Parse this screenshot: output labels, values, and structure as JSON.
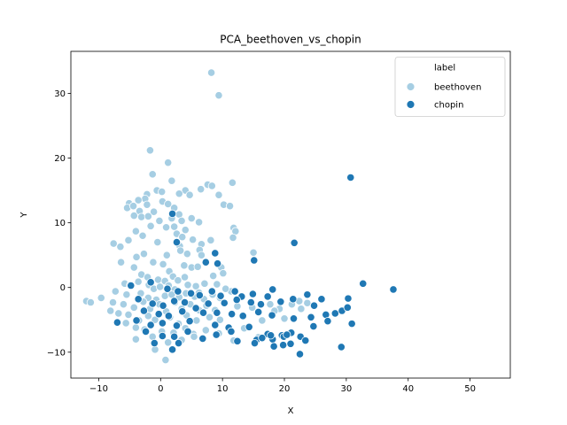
{
  "chart_data": {
    "type": "scatter",
    "title": "PCA_beethoven_vs_chopin",
    "xlabel": "X",
    "ylabel": "Y",
    "xlim": [
      -14.5,
      56.5
    ],
    "ylim": [
      -14.0,
      36.5
    ],
    "xticks": [
      -10,
      0,
      10,
      20,
      30,
      40,
      50
    ],
    "yticks": [
      -10,
      0,
      10,
      20,
      30
    ],
    "legend": {
      "title": "label",
      "position": "top-right"
    },
    "colors": {
      "beethoven": "#a6cee3",
      "chopin": "#1f78b4",
      "marker_edge": "#ffffff"
    },
    "series": [
      {
        "name": "beethoven",
        "points": [
          [
            8.2,
            33.2
          ],
          [
            9.4,
            29.7
          ],
          [
            -1.7,
            21.2
          ],
          [
            1.2,
            19.3
          ],
          [
            -1.3,
            17.5
          ],
          [
            1.8,
            16.5
          ],
          [
            4.0,
            15.0
          ],
          [
            6.5,
            15.2
          ],
          [
            7.6,
            15.9
          ],
          [
            8.3,
            15.7
          ],
          [
            11.6,
            16.2
          ],
          [
            -0.6,
            15.0
          ],
          [
            0.2,
            14.8
          ],
          [
            -2.2,
            14.4
          ],
          [
            3.0,
            14.5
          ],
          [
            4.7,
            14.3
          ],
          [
            9.4,
            14.3
          ],
          [
            -2.5,
            13.7
          ],
          [
            -3.6,
            13.5
          ],
          [
            -5.1,
            13.0
          ],
          [
            -5.4,
            12.3
          ],
          [
            -4.4,
            12.6
          ],
          [
            -3.4,
            11.8
          ],
          [
            -2.2,
            12.8
          ],
          [
            -1.1,
            11.7
          ],
          [
            0.3,
            13.3
          ],
          [
            1.2,
            12.9
          ],
          [
            2.2,
            12.3
          ],
          [
            10.2,
            12.8
          ],
          [
            11.2,
            12.6
          ],
          [
            -4.3,
            11.1
          ],
          [
            -3.1,
            10.9
          ],
          [
            -2.0,
            11.0
          ],
          [
            -0.2,
            10.3
          ],
          [
            1.8,
            10.7
          ],
          [
            3.0,
            11.3
          ],
          [
            3.4,
            10.3
          ],
          [
            5.0,
            10.7
          ],
          [
            6.2,
            10.1
          ],
          [
            11.8,
            9.2
          ],
          [
            12.1,
            8.7
          ],
          [
            -1.6,
            9.5
          ],
          [
            0.9,
            9.3
          ],
          [
            2.2,
            9.4
          ],
          [
            2.6,
            8.3
          ],
          [
            4.0,
            8.9
          ],
          [
            -4.0,
            8.7
          ],
          [
            -2.9,
            8.0
          ],
          [
            3.5,
            7.8
          ],
          [
            5.2,
            7.4
          ],
          [
            8.1,
            7.3
          ],
          [
            11.7,
            7.7
          ],
          [
            -7.6,
            6.8
          ],
          [
            -6.5,
            6.3
          ],
          [
            -5.2,
            7.3
          ],
          [
            -0.5,
            7.0
          ],
          [
            6.6,
            6.7
          ],
          [
            3.1,
            6.4
          ],
          [
            6.3,
            5.8
          ],
          [
            -2.7,
            5.2
          ],
          [
            -3.9,
            4.7
          ],
          [
            1.0,
            5.0
          ],
          [
            3.2,
            5.7
          ],
          [
            4.3,
            5.2
          ],
          [
            6.6,
            5.0
          ],
          [
            15.0,
            5.4
          ],
          [
            -6.4,
            3.9
          ],
          [
            -1.2,
            3.9
          ],
          [
            0.4,
            3.6
          ],
          [
            1.4,
            2.5
          ],
          [
            3.8,
            3.4
          ],
          [
            5.0,
            3.1
          ],
          [
            6.0,
            3.2
          ],
          [
            9.8,
            3.1
          ],
          [
            -4.3,
            3.1
          ],
          [
            -3.1,
            2.0
          ],
          [
            -2.1,
            1.6
          ],
          [
            -0.4,
            1.2
          ],
          [
            0.7,
            1.0
          ],
          [
            2.0,
            1.7
          ],
          [
            2.8,
            1.1
          ],
          [
            3.9,
            1.6
          ],
          [
            8.5,
            1.8
          ],
          [
            10.1,
            2.2
          ],
          [
            -5.8,
            0.6
          ],
          [
            -4.9,
            0.4
          ],
          [
            -3.6,
            0.9
          ],
          [
            -1.9,
            0.4
          ],
          [
            -1.1,
            -0.2
          ],
          [
            -0.1,
            0.1
          ],
          [
            1.3,
            0.3
          ],
          [
            2.3,
            -0.3
          ],
          [
            4.4,
            0.4
          ],
          [
            5.7,
            0.2
          ],
          [
            7.1,
            0.6
          ],
          [
            9.1,
            0.5
          ],
          [
            11.4,
            -0.6
          ],
          [
            -7.3,
            -0.6
          ],
          [
            -5.5,
            -1.1
          ],
          [
            -3.2,
            -0.9
          ],
          [
            -2.0,
            -1.6
          ],
          [
            -0.7,
            -1.9
          ],
          [
            0.7,
            -1.3
          ],
          [
            1.8,
            -1.1
          ],
          [
            3.0,
            -1.5
          ],
          [
            4.1,
            -0.9
          ],
          [
            5.5,
            -1.4
          ],
          [
            6.2,
            -0.8
          ],
          [
            7.0,
            -1.8
          ],
          [
            8.4,
            -1.1
          ],
          [
            9.6,
            -1.6
          ],
          [
            10.5,
            -0.2
          ],
          [
            -12.0,
            -2.1
          ],
          [
            -11.3,
            -2.3
          ],
          [
            -9.6,
            -1.6
          ],
          [
            -7.7,
            -2.3
          ],
          [
            -6.0,
            -2.6
          ],
          [
            -4.3,
            -3.1
          ],
          [
            -2.8,
            -2.2
          ],
          [
            -1.7,
            -3.3
          ],
          [
            -0.2,
            -2.6
          ],
          [
            0.9,
            -3.7
          ],
          [
            2.3,
            -2.3
          ],
          [
            3.4,
            -3.3
          ],
          [
            4.8,
            -2.6
          ],
          [
            6.2,
            -3.5
          ],
          [
            7.4,
            -2.8
          ],
          [
            8.8,
            -3.5
          ],
          [
            -8.1,
            -3.6
          ],
          [
            -6.8,
            -4.0
          ],
          [
            -5.2,
            -4.2
          ],
          [
            -3.5,
            -5.1
          ],
          [
            -2.0,
            -4.4
          ],
          [
            -0.9,
            -5.0
          ],
          [
            1.5,
            -4.6
          ],
          [
            2.9,
            -5.6
          ],
          [
            4.2,
            -4.3
          ],
          [
            5.8,
            -5.1
          ],
          [
            7.9,
            -4.6
          ],
          [
            9.6,
            -5.0
          ],
          [
            -5.6,
            -5.5
          ],
          [
            -4.0,
            -6.2
          ],
          [
            -2.6,
            -6.5
          ],
          [
            0.2,
            -6.8
          ],
          [
            2.1,
            -7.0
          ],
          [
            4.0,
            -6.3
          ],
          [
            5.3,
            -7.2
          ],
          [
            7.3,
            -6.6
          ],
          [
            9.4,
            -7.1
          ],
          [
            11.8,
            -8.2
          ],
          [
            -4.0,
            -8.0
          ],
          [
            -1.3,
            -7.6
          ],
          [
            1.2,
            -8.5
          ],
          [
            3.4,
            -8.1
          ],
          [
            5.4,
            -7.6
          ],
          [
            -0.9,
            -9.6
          ],
          [
            0.8,
            -11.2
          ],
          [
            12.4,
            -2.9
          ],
          [
            14.8,
            -3.1
          ],
          [
            17.7,
            -2.6
          ],
          [
            19.2,
            -3.3
          ],
          [
            21.2,
            -2.6
          ],
          [
            22.4,
            -2.1
          ],
          [
            23.7,
            -2.4
          ],
          [
            18.4,
            -3.6
          ],
          [
            16.4,
            -5.1
          ],
          [
            20.0,
            -4.8
          ],
          [
            22.7,
            -3.3
          ],
          [
            13.5,
            -6.3
          ],
          [
            15.8,
            -7.7
          ]
        ]
      },
      {
        "name": "chopin",
        "points": [
          [
            30.7,
            17.0
          ],
          [
            1.9,
            11.4
          ],
          [
            21.6,
            6.9
          ],
          [
            2.6,
            7.0
          ],
          [
            8.8,
            5.3
          ],
          [
            15.1,
            4.2
          ],
          [
            7.3,
            3.9
          ],
          [
            9.2,
            3.7
          ],
          [
            32.7,
            0.6
          ],
          [
            37.6,
            -0.3
          ],
          [
            -4.8,
            0.3
          ],
          [
            -1.6,
            0.8
          ],
          [
            1.1,
            -0.2
          ],
          [
            2.8,
            -0.6
          ],
          [
            4.9,
            -0.9
          ],
          [
            6.3,
            -1.2
          ],
          [
            8.3,
            -0.6
          ],
          [
            9.7,
            -1.3
          ],
          [
            12.0,
            -0.6
          ],
          [
            13.1,
            -1.4
          ],
          [
            14.9,
            -1.0
          ],
          [
            17.3,
            -1.4
          ],
          [
            18.1,
            -0.3
          ],
          [
            23.7,
            -1.1
          ],
          [
            -3.6,
            -1.8
          ],
          [
            -1.3,
            -2.5
          ],
          [
            0.4,
            -2.8
          ],
          [
            2.2,
            -2.1
          ],
          [
            3.9,
            -2.3
          ],
          [
            5.7,
            -3.2
          ],
          [
            7.7,
            -2.5
          ],
          [
            10.3,
            -2.4
          ],
          [
            12.3,
            -1.9
          ],
          [
            14.6,
            -2.3
          ],
          [
            16.2,
            -2.6
          ],
          [
            19.4,
            -2.2
          ],
          [
            21.4,
            -1.8
          ],
          [
            24.8,
            -2.8
          ],
          [
            26.0,
            -1.8
          ],
          [
            30.3,
            -1.7
          ],
          [
            -2.7,
            -3.6
          ],
          [
            -0.3,
            -4.1
          ],
          [
            1.3,
            -4.4
          ],
          [
            3.5,
            -3.7
          ],
          [
            6.9,
            -3.9
          ],
          [
            9.1,
            -3.9
          ],
          [
            11.5,
            -4.1
          ],
          [
            13.3,
            -4.4
          ],
          [
            15.8,
            -3.8
          ],
          [
            18.0,
            -4.3
          ],
          [
            21.5,
            -4.8
          ],
          [
            24.3,
            -4.6
          ],
          [
            26.7,
            -4.2
          ],
          [
            28.2,
            -4.0
          ],
          [
            29.3,
            -3.6
          ],
          [
            30.2,
            -3.1
          ],
          [
            -7.0,
            -5.4
          ],
          [
            -3.9,
            -5.1
          ],
          [
            -1.6,
            -5.8
          ],
          [
            0.3,
            -5.5
          ],
          [
            2.6,
            -5.9
          ],
          [
            4.7,
            -5.2
          ],
          [
            8.8,
            -5.8
          ],
          [
            11.0,
            -6.2
          ],
          [
            14.3,
            -6.1
          ],
          [
            17.3,
            -7.2
          ],
          [
            19.6,
            -7.4
          ],
          [
            21.1,
            -7.0
          ],
          [
            22.6,
            -7.6
          ],
          [
            24.7,
            -6.0
          ],
          [
            27.0,
            -5.2
          ],
          [
            30.9,
            -5.6
          ],
          [
            -2.4,
            -6.8
          ],
          [
            0.3,
            -7.5
          ],
          [
            2.2,
            -7.6
          ],
          [
            4.4,
            -6.8
          ],
          [
            6.8,
            -7.9
          ],
          [
            9.0,
            -7.3
          ],
          [
            11.4,
            -6.8
          ],
          [
            15.5,
            -8.1
          ],
          [
            16.4,
            -7.8
          ],
          [
            18.1,
            -8.0
          ],
          [
            19.9,
            -7.6
          ],
          [
            21.0,
            -8.7
          ],
          [
            23.4,
            -8.2
          ],
          [
            12.4,
            -8.3
          ],
          [
            15.2,
            -8.6
          ],
          [
            17.8,
            -7.4
          ],
          [
            -1.0,
            -8.6
          ],
          [
            2.9,
            -8.6
          ],
          [
            1.9,
            -9.6
          ],
          [
            18.3,
            -9.1
          ],
          [
            19.8,
            -8.9
          ],
          [
            22.5,
            -10.3
          ],
          [
            29.2,
            -9.2
          ],
          [
            20.4,
            -7.3
          ]
        ]
      }
    ]
  }
}
